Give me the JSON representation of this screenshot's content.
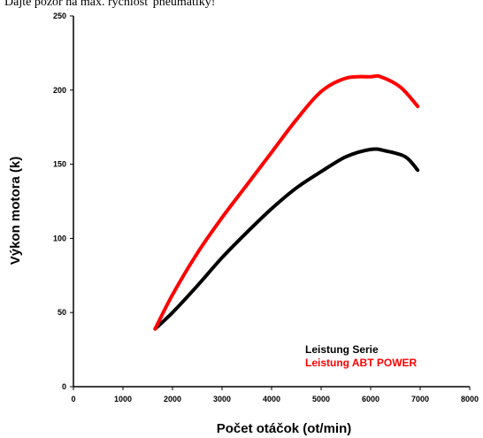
{
  "page_note": "Dajte pozor na max. rýchlosť pneumatiky!",
  "chart_data": {
    "type": "line",
    "title": "",
    "xlabel": "Počet otáčok (ot/min)",
    "ylabel": "Výkon motora (k)",
    "xlim": [
      0,
      8000
    ],
    "ylim": [
      0,
      250
    ],
    "xticks": [
      0,
      1000,
      2000,
      3000,
      4000,
      5000,
      6000,
      7000,
      8000
    ],
    "yticks": [
      0,
      50,
      100,
      150,
      200,
      250
    ],
    "grid": false,
    "legend_position": "bottom-right",
    "series": [
      {
        "name": "Leistung Serie",
        "color": "#000000",
        "points": [
          [
            1650,
            39
          ],
          [
            2000,
            50
          ],
          [
            2500,
            68
          ],
          [
            3000,
            87
          ],
          [
            3500,
            104
          ],
          [
            4000,
            120
          ],
          [
            4500,
            134
          ],
          [
            5000,
            145
          ],
          [
            5500,
            155
          ],
          [
            6000,
            160
          ],
          [
            6300,
            159
          ],
          [
            6700,
            155
          ],
          [
            6950,
            146
          ]
        ]
      },
      {
        "name": "Leistung ABT POWER",
        "color": "#ff0000",
        "points": [
          [
            1650,
            39
          ],
          [
            2000,
            62
          ],
          [
            2500,
            90
          ],
          [
            3000,
            114
          ],
          [
            3500,
            136
          ],
          [
            4000,
            158
          ],
          [
            4500,
            180
          ],
          [
            5000,
            199
          ],
          [
            5500,
            208
          ],
          [
            6000,
            209
          ],
          [
            6200,
            209
          ],
          [
            6600,
            202
          ],
          [
            6950,
            189
          ]
        ]
      }
    ]
  }
}
